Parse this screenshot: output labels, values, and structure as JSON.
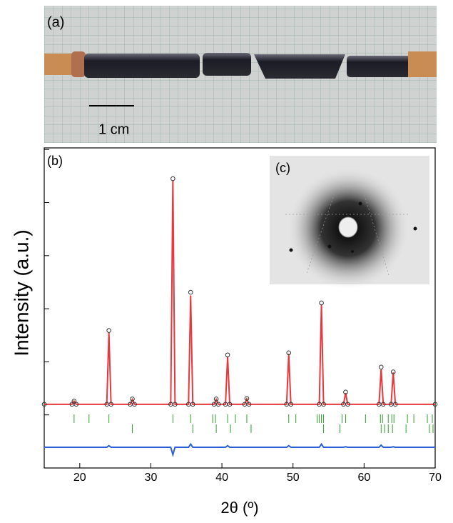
{
  "panel_a": {
    "label": "(a)",
    "scale_bar": "1 cm"
  },
  "chart_data": {
    "type": "line",
    "panel_label": "(b)",
    "inset_label": "(c)",
    "xlabel": "2θ (º)",
    "ylabel": "Intensity (a.u.)",
    "xlim": [
      15,
      70
    ],
    "xticks": [
      20,
      30,
      40,
      50,
      60,
      70
    ],
    "ylim": [
      -1,
      5.03
    ],
    "yticks": [
      0,
      1,
      2,
      3,
      4,
      5
    ],
    "x": [
      15,
      18.9,
      19.2,
      19.5,
      23.8,
      24.1,
      24.4,
      27.1,
      27.4,
      27.7,
      32.8,
      33.1,
      33.4,
      35.3,
      35.6,
      35.9,
      38.9,
      39.2,
      39.5,
      40.5,
      40.8,
      41.1,
      43.2,
      43.5,
      43.8,
      49.1,
      49.4,
      49.7,
      53.7,
      54.0,
      54.3,
      57.1,
      57.4,
      57.7,
      62.1,
      62.4,
      62.7,
      63.8,
      64.1,
      64.4,
      70
    ],
    "series": [
      {
        "style": "line",
        "color": "#e8383d",
        "values": [
          0.2,
          0.2,
          0.26,
          0.2,
          0.2,
          1.55,
          0.2,
          0.2,
          0.29,
          0.2,
          0.2,
          4.42,
          0.2,
          0.2,
          2.25,
          0.2,
          0.2,
          0.29,
          0.2,
          0.2,
          1.1,
          0.2,
          0.2,
          0.3,
          0.2,
          0.2,
          1.15,
          0.2,
          0.2,
          2.08,
          0.2,
          0.2,
          0.41,
          0.2,
          0.2,
          0.86,
          0.2,
          0.2,
          0.8,
          0.2,
          0.2
        ]
      },
      {
        "style": "circle",
        "color": "#333333",
        "values": [
          0.2,
          0.2,
          0.26,
          0.2,
          0.2,
          1.59,
          0.2,
          0.2,
          0.3,
          0.2,
          0.2,
          4.45,
          0.2,
          0.2,
          2.31,
          0.2,
          0.2,
          0.3,
          0.2,
          0.2,
          1.13,
          0.2,
          0.2,
          0.31,
          0.2,
          0.2,
          1.17,
          0.2,
          0.2,
          2.11,
          0.2,
          0.2,
          0.43,
          0.2,
          0.2,
          0.9,
          0.2,
          0.2,
          0.81,
          0.2,
          0.2
        ]
      },
      {
        "style": "line",
        "color": "#2a5fd8",
        "values": [
          -0.61,
          -0.61,
          -0.61,
          -0.61,
          -0.61,
          -0.58,
          -0.61,
          -0.61,
          -0.61,
          -0.61,
          -0.61,
          -0.75,
          -0.61,
          -0.61,
          -0.55,
          -0.61,
          -0.61,
          -0.61,
          -0.61,
          -0.61,
          -0.58,
          -0.61,
          -0.61,
          -0.61,
          -0.61,
          -0.61,
          -0.58,
          -0.61,
          -0.61,
          -0.55,
          -0.61,
          -0.61,
          -0.6,
          -0.61,
          -0.61,
          -0.57,
          -0.61,
          -0.61,
          -0.6,
          -0.61,
          -0.61
        ]
      }
    ],
    "bragg": [
      {
        "color": "#2ca02c",
        "positions": [
          19.2,
          21.3,
          24.1,
          33.1,
          35.6,
          38.7,
          39.1,
          40.8,
          41.9,
          43.5,
          49.4,
          50.4,
          53.4,
          53.7,
          54.0,
          54.3,
          56.9,
          57.4,
          60.2,
          62.3,
          62.6,
          63.4,
          63.9,
          64.2,
          66.1,
          67.0,
          68.9,
          69.6
        ]
      },
      {
        "color": "#2ca02c",
        "positions": [
          27.4,
          35.9,
          39.2,
          41.2,
          44.1,
          54.3,
          56.6,
          62.4,
          62.9,
          63.4,
          64.0,
          65.9,
          69.2,
          69.7
        ]
      }
    ]
  }
}
